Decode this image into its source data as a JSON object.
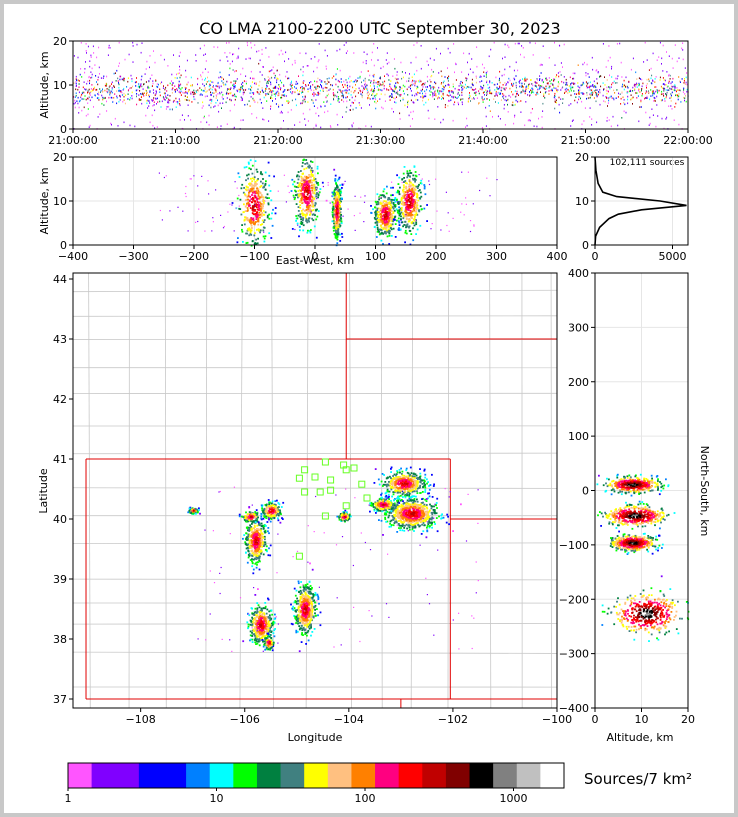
{
  "chart_data": [
    {
      "type": "scatter",
      "panel": "time-height",
      "title": "CO LMA 2100-2200 UTC September 30, 2023",
      "xlabel": "",
      "ylabel": "Altitude, km",
      "x_tick_labels": [
        "21:00:00",
        "21:10:00",
        "21:20:00",
        "21:30:00",
        "21:40:00",
        "21:50:00",
        "22:00:00"
      ],
      "ylim": [
        0,
        20
      ],
      "y_ticks": [
        "0",
        "10",
        "20"
      ],
      "density_profile": {
        "t_start_min": 0,
        "t_end_min": 60,
        "core_altitude_km": [
          5,
          13
        ],
        "sparse_altitude_km": [
          0,
          20
        ]
      }
    },
    {
      "type": "scatter",
      "panel": "east-west-altitude",
      "xlabel": "East-West, km",
      "ylabel": "Altitude, km",
      "xlim": [
        -400,
        400
      ],
      "ylim": [
        0,
        20
      ],
      "x_ticks": [
        "−400",
        "−300",
        "−200",
        "−100",
        "0",
        "100",
        "200",
        "300",
        "400"
      ],
      "y_ticks": [
        "0",
        "10",
        "20"
      ],
      "clusters": [
        {
          "x_km": -102,
          "alt_km": 9,
          "x_span_km": 28,
          "alt_span_km": 18
        },
        {
          "x_km": -15,
          "alt_km": 12,
          "x_span_km": 22,
          "alt_span_km": 16
        },
        {
          "x_km": 35,
          "alt_km": 8,
          "x_span_km": 8,
          "alt_span_km": 12
        },
        {
          "x_km": 115,
          "alt_km": 7,
          "x_span_km": 20,
          "alt_span_km": 10
        },
        {
          "x_km": 155,
          "alt_km": 10,
          "x_span_km": 22,
          "alt_span_km": 14
        }
      ]
    },
    {
      "type": "line",
      "panel": "altitude-histogram",
      "annotation": "102,111 sources",
      "xlim": [
        0,
        6000
      ],
      "ylim": [
        0,
        20
      ],
      "x_ticks": [
        "0",
        "5000"
      ],
      "y_ticks": [
        "0",
        "10",
        "20"
      ],
      "profile": [
        {
          "alt": 0,
          "count": 0
        },
        {
          "alt": 2,
          "count": 40
        },
        {
          "alt": 4,
          "count": 300
        },
        {
          "alt": 6,
          "count": 900
        },
        {
          "alt": 7,
          "count": 1500
        },
        {
          "alt": 8,
          "count": 3000
        },
        {
          "alt": 9,
          "count": 5900
        },
        {
          "alt": 10,
          "count": 4200
        },
        {
          "alt": 11,
          "count": 1400
        },
        {
          "alt": 12,
          "count": 500
        },
        {
          "alt": 14,
          "count": 200
        },
        {
          "alt": 17,
          "count": 60
        },
        {
          "alt": 20,
          "count": 0
        }
      ]
    },
    {
      "type": "scatter",
      "panel": "plan-view",
      "xlabel": "Longitude",
      "ylabel": "Latitude",
      "xlim": [
        -109.3,
        -100.0
      ],
      "ylim": [
        36.85,
        44.1
      ],
      "x_ticks": [
        "−108",
        "−106",
        "−104",
        "−102",
        "−100"
      ],
      "y_ticks": [
        "37",
        "38",
        "39",
        "40",
        "41",
        "42",
        "43",
        "44"
      ],
      "stations": [
        [
          -104.45,
          40.95
        ],
        [
          -104.1,
          40.9
        ],
        [
          -104.05,
          40.82
        ],
        [
          -103.9,
          40.85
        ],
        [
          -104.85,
          40.82
        ],
        [
          -104.95,
          40.68
        ],
        [
          -104.65,
          40.7
        ],
        [
          -104.35,
          40.65
        ],
        [
          -104.55,
          40.45
        ],
        [
          -104.85,
          40.45
        ],
        [
          -104.35,
          40.48
        ],
        [
          -103.75,
          40.58
        ],
        [
          -103.65,
          40.35
        ],
        [
          -104.05,
          40.22
        ],
        [
          -104.45,
          40.05
        ],
        [
          -104.95,
          39.38
        ]
      ],
      "clusters": [
        {
          "lon": -102.8,
          "lat": 40.1,
          "dlon": 0.55,
          "dlat": 0.28
        },
        {
          "lon": -102.95,
          "lat": 40.6,
          "dlon": 0.45,
          "dlat": 0.22
        },
        {
          "lon": -103.35,
          "lat": 40.25,
          "dlon": 0.25,
          "dlat": 0.12
        },
        {
          "lon": -104.1,
          "lat": 40.05,
          "dlon": 0.12,
          "dlat": 0.08
        },
        {
          "lon": -105.5,
          "lat": 40.15,
          "dlon": 0.2,
          "dlat": 0.15
        },
        {
          "lon": -105.8,
          "lat": 39.65,
          "dlon": 0.22,
          "dlat": 0.4
        },
        {
          "lon": -105.9,
          "lat": 40.05,
          "dlon": 0.18,
          "dlat": 0.1
        },
        {
          "lon": -104.85,
          "lat": 38.5,
          "dlon": 0.22,
          "dlat": 0.45
        },
        {
          "lon": -105.7,
          "lat": 38.25,
          "dlon": 0.25,
          "dlat": 0.35
        },
        {
          "lon": -105.55,
          "lat": 37.95,
          "dlon": 0.1,
          "dlat": 0.12
        },
        {
          "lon": -107.0,
          "lat": 40.15,
          "dlon": 0.1,
          "dlat": 0.05
        }
      ]
    },
    {
      "type": "scatter",
      "panel": "altitude-north-south",
      "xlabel": "Altitude, km",
      "ylabel": "North-South, km",
      "xlim": [
        0,
        20
      ],
      "ylim": [
        -400,
        400
      ],
      "x_ticks": [
        "0",
        "10",
        "20"
      ],
      "y_ticks": [
        "−400",
        "−300",
        "−200",
        "−100",
        "0",
        "100",
        "200",
        "300",
        "400"
      ],
      "clusters": [
        {
          "alt": 8,
          "ns": 12,
          "dalt": 6,
          "dns": 15
        },
        {
          "alt": 8.5,
          "ns": -45,
          "dalt": 7,
          "dns": 20
        },
        {
          "alt": 8,
          "ns": -95,
          "dalt": 5,
          "dns": 15
        },
        {
          "alt": 11,
          "ns": -225,
          "dalt": 8,
          "dns": 40
        }
      ]
    }
  ],
  "colorbar": {
    "label": "Sources/7 km²",
    "tick_labels": [
      "1",
      "10",
      "100",
      "1000"
    ],
    "colors": [
      "#ff55ff",
      "#8000ff",
      "#8000ff",
      "#0000ff",
      "#0000ff",
      "#0080ff",
      "#00ffff",
      "#00ff00",
      "#008040",
      "#408080",
      "#ffff00",
      "#ffc080",
      "#ff8000",
      "#ff0080",
      "#ff0000",
      "#c00000",
      "#800000",
      "#000000",
      "#808080",
      "#c0c0c0",
      "#ffffff"
    ]
  }
}
